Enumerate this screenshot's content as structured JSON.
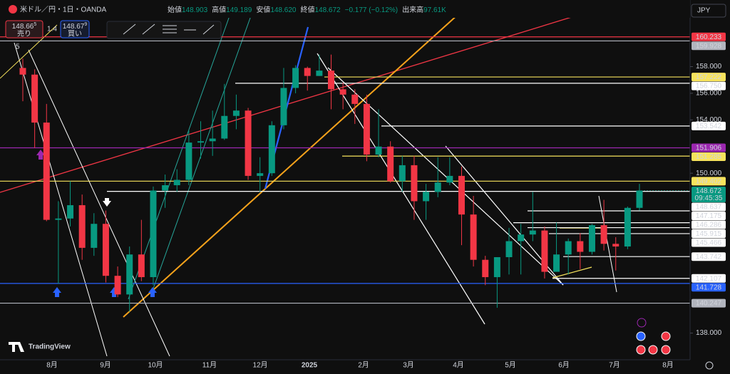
{
  "header": {
    "symbol": "米ドル／円・1日・OANDA",
    "ohlc": [
      {
        "label": "始値",
        "value": "148.903"
      },
      {
        "label": "高値",
        "value": "149.189"
      },
      {
        "label": "安値",
        "value": "148.620"
      },
      {
        "label": "終値",
        "value": "148.672"
      }
    ],
    "change": "−0.177 (−0.12%)",
    "volume_label": "出来高",
    "volume": "97.61K"
  },
  "trade": {
    "sell_price": "148.66",
    "sell_sup": "5",
    "sell_label": "売り",
    "spread": "1.4",
    "buy_price": "148.67",
    "buy_sup": "9",
    "buy_label": "買い"
  },
  "currency": "JPY",
  "indicator": "5",
  "logo": "TradingView",
  "chart_data": {
    "type": "candlestick",
    "up_color": "#089981",
    "down_color": "#f23645",
    "ylim": [
      136.0,
      163.0
    ],
    "yticks": [
      {
        "value": 158,
        "label": "158.000"
      },
      {
        "value": 156,
        "label": "156.000"
      },
      {
        "value": 154,
        "label": "154.000"
      },
      {
        "value": 150,
        "label": "150.000"
      },
      {
        "value": 138,
        "label": "138.000"
      }
    ],
    "categories": [
      "8月",
      "9月",
      "10月",
      "11月",
      "12月",
      "2025",
      "2月",
      "3月",
      "4月",
      "5月",
      "6月",
      "7月",
      "8月"
    ],
    "price_lines": [
      {
        "value": 160.233,
        "color": "#f23645",
        "tag_color": "#f23645",
        "text_color": "#ffffff"
      },
      {
        "value": 159.928,
        "color": "#b2b5be",
        "tag_color": "#b2b5be",
        "text_color": "#131722"
      },
      {
        "value": 157.222,
        "color": "#f7e35c",
        "tag_color": "#f7e35c",
        "text_color": "#131722"
      },
      {
        "value": {
          "value": 156.75,
          "label": "156.750"
        },
        "color": "#ffffff",
        "tag_color": "#ffffff",
        "text_color": "#131722"
      },
      {
        "value": 153.542,
        "color": "#ffffff",
        "tag_color": "#ffffff",
        "text_color": "#131722"
      },
      {
        "value": 151.906,
        "color": "#9c27b0",
        "tag_color": "#9c27b0",
        "text_color": "#ffffff"
      },
      {
        "value": 151.285,
        "color": "#f7e35c",
        "tag_color": "#f7e35c",
        "text_color": "#131722"
      },
      {
        "value": 149.402,
        "color": "#f7e35c",
        "tag_color": "#f7e35c",
        "text_color": "#131722"
      },
      {
        "value": 148.672,
        "color": "#089981",
        "tag_color": "#089981",
        "text_color": "#ffffff",
        "time": "09:45:35"
      },
      {
        "value": 148.637,
        "color": "#ffffff",
        "tag_color": "#ffffff",
        "text_color": "#131722"
      },
      {
        "value": 147.175,
        "color": "#ffffff",
        "tag_color": "#ffffff",
        "text_color": "#131722"
      },
      {
        "value": 146.286,
        "color": "#ffffff",
        "tag_color": "#ffffff",
        "text_color": "#131722"
      },
      {
        "value": 145.915,
        "color": "#ffffff",
        "tag_color": "#ffffff",
        "text_color": "#131722"
      },
      {
        "value": 145.466,
        "color": "#ffffff",
        "tag_color": "#ffffff",
        "text_color": "#131722"
      },
      {
        "value": 143.742,
        "color": "#ffffff",
        "tag_color": "#ffffff",
        "text_color": "#131722"
      },
      {
        "value": 142.107,
        "color": "#ffffff",
        "tag_color": "#ffffff",
        "text_color": "#131722"
      },
      {
        "value": 141.728,
        "color": "#2962ff",
        "tag_color": "#2962ff",
        "text_color": "#ffffff"
      },
      {
        "value": 140.247,
        "color": "#b2b5be",
        "tag_color": "#b2b5be",
        "text_color": "#131722"
      }
    ],
    "candles": [
      [
        157.9,
        158.6,
        155.4,
        157.4
      ],
      [
        157.4,
        157.8,
        151.9,
        153.8
      ],
      [
        153.8,
        155.2,
        146.4,
        146.5
      ],
      [
        146.5,
        147.9,
        141.7,
        146.6
      ],
      [
        146.6,
        149.4,
        146.0,
        147.6
      ],
      [
        147.6,
        148.4,
        143.5,
        144.4
      ],
      [
        144.4,
        147.0,
        143.8,
        146.2
      ],
      [
        146.2,
        147.2,
        141.8,
        142.3
      ],
      [
        142.3,
        143.0,
        140.7,
        140.9
      ],
      [
        140.9,
        144.5,
        139.6,
        143.9
      ],
      [
        143.9,
        146.5,
        141.9,
        142.2
      ],
      [
        142.2,
        149.0,
        141.6,
        148.7
      ],
      [
        148.7,
        149.9,
        147.4,
        149.1
      ],
      [
        149.1,
        150.3,
        148.6,
        149.5
      ],
      [
        149.5,
        153.2,
        149.1,
        152.3
      ],
      [
        152.3,
        153.9,
        151.1,
        152.4
      ],
      [
        152.4,
        154.7,
        151.3,
        152.6
      ],
      [
        152.6,
        156.7,
        152.5,
        154.3
      ],
      [
        154.3,
        155.9,
        153.3,
        154.7
      ],
      [
        154.7,
        154.9,
        149.5,
        149.8
      ],
      [
        149.8,
        151.2,
        148.6,
        150.0
      ],
      [
        150.0,
        153.9,
        149.8,
        153.6
      ],
      [
        153.6,
        157.9,
        153.3,
        156.4
      ],
      [
        156.4,
        158.1,
        156.0,
        157.9
      ],
      [
        157.9,
        158.0,
        156.2,
        157.3
      ],
      [
        157.3,
        158.9,
        157.3,
        157.7
      ],
      [
        157.7,
        158.9,
        154.8,
        156.3
      ],
      [
        156.3,
        156.8,
        154.8,
        155.9
      ],
      [
        155.9,
        156.3,
        153.7,
        155.2
      ],
      [
        155.2,
        155.9,
        150.9,
        151.4
      ],
      [
        151.4,
        154.8,
        151.2,
        152.0
      ],
      [
        152.0,
        152.4,
        149.3,
        149.4
      ],
      [
        149.4,
        151.3,
        148.6,
        150.6
      ],
      [
        150.6,
        151.3,
        146.5,
        147.9
      ],
      [
        147.9,
        149.2,
        146.5,
        148.6
      ],
      [
        148.6,
        151.2,
        148.2,
        149.3
      ],
      [
        149.3,
        151.2,
        149.1,
        149.8
      ],
      [
        149.8,
        150.5,
        144.6,
        146.9
      ],
      [
        146.9,
        148.3,
        143.0,
        143.5
      ],
      [
        143.5,
        143.8,
        141.6,
        142.2
      ],
      [
        142.2,
        143.7,
        139.9,
        143.7
      ],
      [
        143.7,
        145.9,
        142.4,
        144.9
      ],
      [
        144.9,
        146.2,
        142.4,
        145.4
      ],
      [
        145.4,
        148.6,
        144.9,
        145.7
      ],
      [
        145.7,
        146.0,
        142.1,
        142.6
      ],
      [
        142.6,
        146.3,
        142.6,
        143.9
      ],
      [
        143.9,
        145.1,
        142.4,
        144.9
      ],
      [
        144.9,
        145.5,
        142.8,
        144.1
      ],
      [
        144.1,
        146.2,
        143.9,
        146.1
      ],
      [
        146.1,
        148.0,
        144.2,
        144.7
      ],
      [
        144.7,
        145.2,
        142.7,
        144.5
      ],
      [
        144.5,
        147.5,
        144.3,
        147.4
      ],
      [
        147.4,
        149.2,
        147.2,
        148.7
      ]
    ]
  }
}
